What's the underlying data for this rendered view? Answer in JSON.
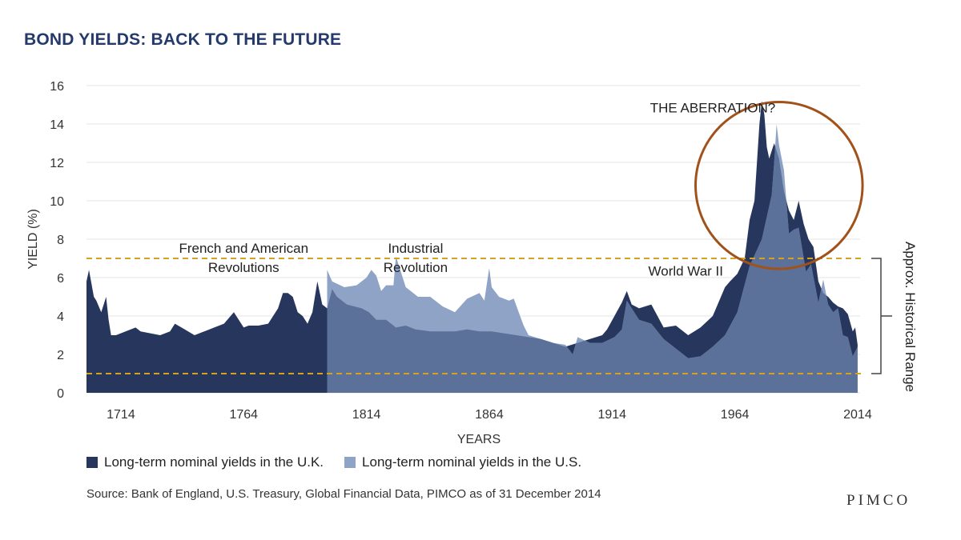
{
  "title": "BOND YIELDS: BACK TO THE FUTURE",
  "source": "Source: Bank of England, U.S. Treasury, Global Financial Data, PIMCO as of 31 December 2014",
  "brand": "PIMCO",
  "colors": {
    "uk": "#27365d",
    "us": "#8ea3c6",
    "overlap": "#5b7199",
    "range_line": "#d4a21e",
    "circle": "#a0521a",
    "grid": "#e4e4e4",
    "title": "#243a6b"
  },
  "chart_data": {
    "type": "area",
    "title": "BOND YIELDS: BACK TO THE FUTURE",
    "xlabel": "YEARS",
    "ylabel": "YIELD (%)",
    "xlim": [
      1700,
      2015
    ],
    "ylim": [
      0,
      16
    ],
    "yticks": [
      "0",
      "2",
      "4",
      "6",
      "8",
      "10",
      "12",
      "14",
      "16"
    ],
    "xticks": [
      "1714",
      "1764",
      "1814",
      "1864",
      "1914",
      "1964",
      "2014"
    ],
    "grid": true,
    "legend_position": "bottom-left",
    "series": [
      {
        "name": "Long-term nominal yields in the U.K.",
        "x": [
          1700,
          1701,
          1703,
          1704,
          1706,
          1707,
          1708,
          1709,
          1710,
          1711,
          1712,
          1720,
          1722,
          1726,
          1730,
          1734,
          1736,
          1740,
          1744,
          1748,
          1752,
          1756,
          1760,
          1764,
          1766,
          1770,
          1774,
          1778,
          1780,
          1782,
          1784,
          1786,
          1788,
          1790,
          1792,
          1794,
          1796,
          1798,
          1800,
          1802,
          1806,
          1812,
          1815,
          1818,
          1822,
          1826,
          1830,
          1834,
          1840,
          1845,
          1850,
          1855,
          1860,
          1865,
          1870,
          1875,
          1880,
          1885,
          1890,
          1895,
          1900,
          1905,
          1910,
          1912,
          1915,
          1918,
          1920,
          1922,
          1925,
          1930,
          1935,
          1940,
          1945,
          1950,
          1955,
          1960,
          1962,
          1965,
          1968,
          1970,
          1972,
          1974,
          1975,
          1976,
          1977,
          1978,
          1980,
          1982,
          1984,
          1986,
          1988,
          1990,
          1992,
          1994,
          1996,
          1998,
          2000,
          2002,
          2004,
          2006,
          2008,
          2010,
          2012,
          2013,
          2014
        ],
        "values": [
          5.8,
          6.4,
          5.0,
          4.8,
          4.2,
          4.6,
          5.0,
          3.8,
          3.0,
          3.0,
          3.0,
          3.4,
          3.2,
          3.1,
          3.0,
          3.2,
          3.6,
          3.3,
          3.0,
          3.2,
          3.4,
          3.6,
          4.2,
          3.4,
          3.5,
          3.5,
          3.6,
          4.4,
          5.2,
          5.2,
          5.0,
          4.2,
          4.0,
          3.6,
          4.2,
          5.8,
          4.6,
          4.4,
          5.4,
          5.0,
          4.6,
          4.4,
          4.2,
          3.8,
          3.8,
          3.4,
          3.5,
          3.3,
          3.2,
          3.2,
          3.2,
          3.3,
          3.2,
          3.2,
          3.1,
          3.0,
          2.9,
          2.8,
          2.6,
          2.4,
          2.6,
          2.8,
          3.0,
          3.3,
          4.0,
          4.7,
          5.3,
          4.6,
          4.4,
          4.6,
          3.4,
          3.5,
          3.0,
          3.4,
          4.0,
          5.5,
          5.8,
          6.2,
          7.0,
          9.0,
          10.0,
          14.0,
          15.2,
          14.5,
          12.8,
          12.2,
          13.0,
          12.2,
          10.5,
          9.5,
          9.0,
          10.0,
          8.8,
          8.0,
          7.6,
          5.8,
          5.2,
          5.0,
          4.7,
          4.5,
          4.4,
          4.1,
          3.2,
          3.4,
          2.5
        ]
      },
      {
        "name": "Long-term nominal yields in the U.S.",
        "x": [
          1798,
          1800,
          1805,
          1810,
          1814,
          1816,
          1818,
          1820,
          1822,
          1825,
          1826,
          1830,
          1835,
          1838,
          1840,
          1845,
          1850,
          1855,
          1860,
          1862,
          1864,
          1865,
          1868,
          1870,
          1872,
          1874,
          1876,
          1878,
          1880,
          1885,
          1890,
          1895,
          1898,
          1900,
          1905,
          1910,
          1915,
          1918,
          1920,
          1925,
          1930,
          1935,
          1940,
          1945,
          1950,
          1955,
          1960,
          1965,
          1970,
          1975,
          1979,
          1980,
          1981,
          1982,
          1984,
          1986,
          1988,
          1990,
          1993,
          1995,
          1998,
          2000,
          2002,
          2004,
          2006,
          2008,
          2010,
          2012,
          2014
        ],
        "values": [
          6.4,
          5.8,
          5.5,
          5.6,
          6.0,
          6.4,
          6.1,
          5.3,
          5.6,
          5.6,
          7.1,
          5.5,
          5.0,
          5.0,
          5.0,
          4.5,
          4.2,
          4.9,
          5.2,
          4.8,
          6.5,
          5.5,
          5.0,
          4.9,
          4.8,
          4.9,
          4.2,
          3.5,
          3.0,
          2.8,
          2.6,
          2.5,
          2.0,
          2.9,
          2.6,
          2.6,
          2.9,
          3.3,
          4.8,
          3.8,
          3.6,
          2.8,
          2.3,
          1.8,
          1.9,
          2.4,
          3.0,
          4.2,
          6.6,
          8.0,
          10.3,
          12.0,
          14.0,
          12.9,
          11.6,
          8.3,
          8.5,
          8.6,
          6.3,
          6.7,
          4.7,
          5.9,
          4.6,
          4.2,
          4.4,
          3.0,
          2.9,
          1.9,
          2.4
        ]
      }
    ],
    "reference_lines": [
      {
        "value": 7,
        "name": "range-upper"
      },
      {
        "value": 1,
        "name": "range-lower"
      }
    ],
    "range_label": "Approx. Historical Range",
    "annotations": [
      {
        "text": "THE ABERRATION?",
        "x": 1955,
        "y": 14.6
      },
      {
        "text": "French and American",
        "x": 1764,
        "y": 7.3
      },
      {
        "text": "Revolutions",
        "x": 1764,
        "y": 6.3
      },
      {
        "text": "Industrial",
        "x": 1834,
        "y": 7.3
      },
      {
        "text": "Revolution",
        "x": 1834,
        "y": 6.3
      },
      {
        "text": "World War II",
        "x": 1944,
        "y": 6.1
      }
    ],
    "highlight_circle": {
      "cx": 1982,
      "cy": 10.8,
      "r_years": 34
    }
  }
}
